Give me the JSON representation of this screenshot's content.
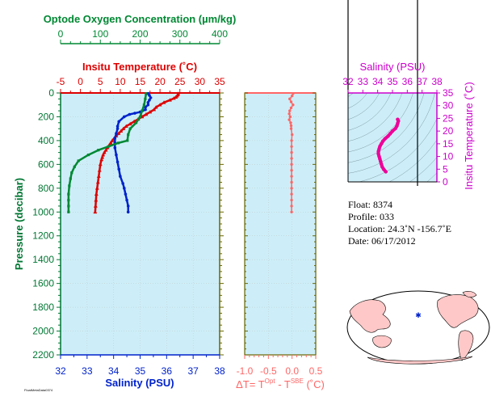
{
  "colors": {
    "panel_bg": "#cdeef8",
    "temperature": "#dd0000",
    "salinity": "#0022cc",
    "oxygen": "#008833",
    "delta_t": "#ff6666",
    "ts_curve": "#ee0099",
    "ts_axis": "#cc00cc",
    "frame_olive": "#666600",
    "left_axis": "#007733"
  },
  "labels": {
    "oxygen_axis": "Optode Oxygen Concentration (µm/kg)",
    "temperature_axis": "Insitu Temperature (˚C)",
    "pressure_axis": "Pressure (decibar)",
    "salinity_axis": "Salinity (PSU)",
    "delta_t_axis": "ΔT= T",
    "delta_t_sup1": "Opt",
    "delta_t_mid": " - T",
    "delta_t_sup2": "SBE",
    "delta_t_tail": " (˚C)",
    "ts_top_axis": "Salinity (PSU)",
    "ts_right_axis": "Insitu Temperature (˚C)",
    "footer": "FloatMetaData0374"
  },
  "info": {
    "float": "Float:  8374",
    "profile": "Profile:  033",
    "location": "Location:  24.3˚N  -156.7˚E",
    "date": "Date:  06/17/2012"
  },
  "chart_data": [
    {
      "type": "line",
      "name": "profile",
      "y_label": "Pressure (decibar)",
      "ylim": [
        2200,
        0
      ],
      "yticks": [
        0,
        200,
        400,
        600,
        800,
        1000,
        1200,
        1400,
        1600,
        1800,
        2000,
        2200
      ],
      "axes": {
        "salinity": {
          "label": "Salinity (PSU)",
          "lim": [
            32,
            38
          ],
          "ticks": [
            32,
            33,
            34,
            35,
            36,
            37,
            38
          ]
        },
        "temperature": {
          "label": "Insitu Temperature (˚C)",
          "lim": [
            -5,
            35
          ],
          "ticks": [
            -5,
            0,
            5,
            10,
            15,
            20,
            25,
            30,
            35
          ]
        },
        "oxygen": {
          "label": "Optode Oxygen Concentration (µm/kg)",
          "lim": [
            0,
            400
          ],
          "ticks": [
            0,
            100,
            200,
            300,
            400
          ]
        }
      },
      "series": [
        {
          "axis": "temperature",
          "points": [
            [
              24.6,
              5
            ],
            [
              24.5,
              15
            ],
            [
              24.3,
              25
            ],
            [
              24,
              35
            ],
            [
              23.5,
              45
            ],
            [
              22.5,
              60
            ],
            [
              21,
              80
            ],
            [
              20,
              100
            ],
            [
              19,
              120
            ],
            [
              18.5,
              140
            ],
            [
              17.5,
              160
            ],
            [
              16.5,
              180
            ],
            [
              15.5,
              200
            ],
            [
              14.5,
              220
            ],
            [
              13.5,
              240
            ],
            [
              12.5,
              260
            ],
            [
              11.5,
              280
            ],
            [
              10.8,
              300
            ],
            [
              10.2,
              320
            ],
            [
              9.6,
              340
            ],
            [
              9,
              360
            ],
            [
              8.5,
              380
            ],
            [
              8,
              400
            ],
            [
              7.6,
              420
            ],
            [
              7.2,
              440
            ],
            [
              6.8,
              460
            ],
            [
              6.4,
              480
            ],
            [
              6,
              500
            ],
            [
              5.7,
              520
            ],
            [
              5.5,
              540
            ],
            [
              5.3,
              560
            ],
            [
              5,
              600
            ],
            [
              4.8,
              650
            ],
            [
              4.6,
              700
            ],
            [
              4.4,
              750
            ],
            [
              4.2,
              800
            ],
            [
              4,
              850
            ],
            [
              3.9,
              900
            ],
            [
              3.8,
              950
            ],
            [
              3.7,
              1000
            ]
          ]
        },
        {
          "axis": "salinity",
          "points": [
            [
              35.3,
              5
            ],
            [
              35.35,
              20
            ],
            [
              35.4,
              40
            ],
            [
              35.35,
              60
            ],
            [
              35.3,
              80
            ],
            [
              35.3,
              100
            ],
            [
              35.2,
              120
            ],
            [
              35.2,
              140
            ],
            [
              35.0,
              160
            ],
            [
              34.8,
              170
            ],
            [
              34.6,
              180
            ],
            [
              34.4,
              200
            ],
            [
              34.2,
              240
            ],
            [
              34.15,
              280
            ],
            [
              34.15,
              300
            ],
            [
              34.1,
              340
            ],
            [
              34.05,
              380
            ],
            [
              34.05,
              420
            ],
            [
              34.05,
              460
            ],
            [
              34.1,
              520
            ],
            [
              34.15,
              580
            ],
            [
              34.2,
              640
            ],
            [
              34.25,
              700
            ],
            [
              34.35,
              760
            ],
            [
              34.4,
              800
            ],
            [
              34.45,
              850
            ],
            [
              34.5,
              900
            ],
            [
              34.55,
              950
            ],
            [
              34.55,
              1000
            ]
          ]
        },
        {
          "axis": "oxygen",
          "points": [
            [
              215,
              5
            ],
            [
              213,
              50
            ],
            [
              210,
              100
            ],
            [
              205,
              150
            ],
            [
              200,
              200
            ],
            [
              190,
              250
            ],
            [
              175,
              300
            ],
            [
              170,
              350
            ],
            [
              168,
              400
            ],
            [
              145,
              420
            ],
            [
              120,
              450
            ],
            [
              95,
              480
            ],
            [
              70,
              520
            ],
            [
              45,
              570
            ],
            [
              35,
              620
            ],
            [
              28,
              670
            ],
            [
              25,
              720
            ],
            [
              22,
              780
            ],
            [
              20,
              850
            ],
            [
              20,
              900
            ],
            [
              20,
              950
            ],
            [
              20,
              1000
            ]
          ]
        }
      ]
    },
    {
      "type": "line",
      "name": "delta_t",
      "x_label": "ΔT= T^Opt - T^SBE (˚C)",
      "xlim": [
        -1.0,
        0.5
      ],
      "xticks": [
        -1.0,
        -0.5,
        0.0,
        0.5
      ],
      "ylim": [
        2200,
        0
      ],
      "series": [
        {
          "points": [
            [
              0.02,
              5
            ],
            [
              0.0,
              25
            ],
            [
              -0.05,
              50
            ],
            [
              -0.02,
              75
            ],
            [
              0.02,
              100
            ],
            [
              -0.02,
              125
            ],
            [
              -0.05,
              150
            ],
            [
              -0.06,
              175
            ],
            [
              -0.04,
              200
            ],
            [
              -0.06,
              225
            ],
            [
              -0.03,
              250
            ],
            [
              -0.02,
              275
            ],
            [
              -0.02,
              300
            ],
            [
              0.0,
              350
            ],
            [
              -0.01,
              400
            ],
            [
              -0.01,
              450
            ],
            [
              -0.01,
              500
            ],
            [
              -0.01,
              550
            ],
            [
              -0.01,
              600
            ],
            [
              -0.01,
              650
            ],
            [
              -0.01,
              700
            ],
            [
              -0.01,
              750
            ],
            [
              -0.01,
              800
            ],
            [
              -0.01,
              850
            ],
            [
              -0.01,
              900
            ],
            [
              -0.01,
              950
            ],
            [
              -0.01,
              1000
            ]
          ]
        }
      ]
    },
    {
      "type": "line",
      "name": "ts_diagram",
      "x_label": "Salinity (PSU)",
      "y_label": "Insitu Temperature (˚C)",
      "xlim": [
        32,
        38
      ],
      "ylim": [
        0,
        35
      ],
      "xticks": [
        32,
        33,
        34,
        35,
        36,
        37,
        38
      ],
      "yticks": [
        0,
        5,
        10,
        15,
        20,
        25,
        30,
        35
      ],
      "series": [
        {
          "points": [
            [
              34.55,
              4
            ],
            [
              34.4,
              5
            ],
            [
              34.3,
              6
            ],
            [
              34.25,
              7
            ],
            [
              34.2,
              8
            ],
            [
              34.15,
              9
            ],
            [
              34.1,
              10
            ],
            [
              34.05,
              11
            ],
            [
              34.05,
              12
            ],
            [
              34.1,
              13
            ],
            [
              34.15,
              14
            ],
            [
              34.25,
              15
            ],
            [
              34.35,
              16
            ],
            [
              34.5,
              17
            ],
            [
              34.7,
              18
            ],
            [
              34.85,
              19
            ],
            [
              35.0,
              20
            ],
            [
              35.2,
              21
            ],
            [
              35.3,
              22
            ],
            [
              35.35,
              23
            ],
            [
              35.4,
              24
            ],
            [
              35.35,
              24.6
            ]
          ]
        }
      ]
    }
  ]
}
